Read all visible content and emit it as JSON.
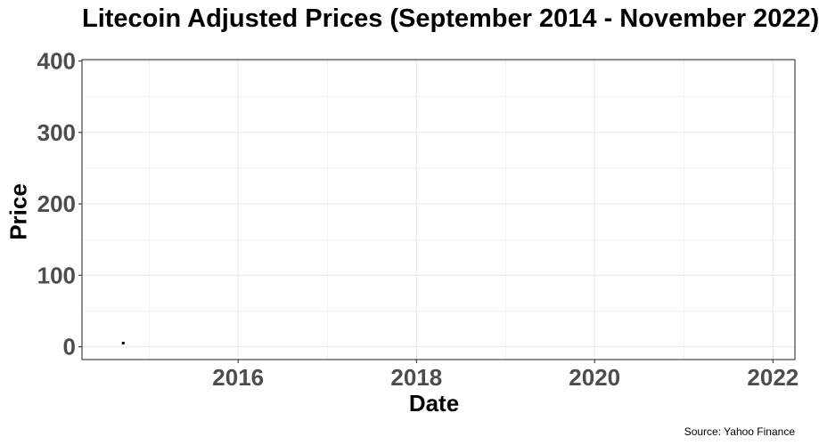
{
  "chart_data": {
    "type": "scatter",
    "title": "Litecoin Adjusted Prices (September 2014 - November 2022)",
    "xlabel": "Date",
    "ylabel": "Price",
    "caption": "Source: Yahoo Finance",
    "x_range": [
      "2014-04-01",
      "2022-04-01"
    ],
    "ylim": [
      -18,
      402
    ],
    "x_ticks": [
      "2016",
      "2018",
      "2020",
      "2022"
    ],
    "y_ticks": [
      0,
      100,
      200,
      300,
      400
    ],
    "grid": true,
    "series": [
      {
        "x": [
          "2014-09-17"
        ],
        "y": [
          5.06
        ]
      }
    ],
    "colors": {
      "point": "#000000",
      "panel_border": "#333333",
      "grid": "#ebebeb",
      "tick_label": "#4d4d4d"
    }
  }
}
